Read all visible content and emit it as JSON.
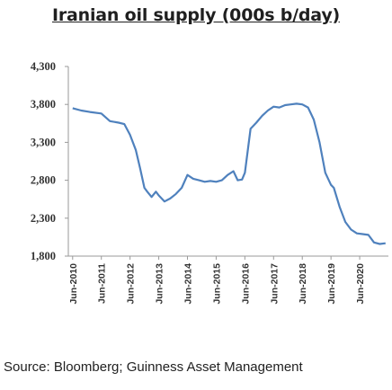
{
  "chart_data": {
    "type": "line",
    "title": "Iranian oil supply (000s b/day)",
    "xlabel": "",
    "ylabel": "",
    "ylim": [
      1800,
      4300
    ],
    "yticks": [
      "4,300",
      "3,800",
      "3,300",
      "2,800",
      "2,300",
      "1,800"
    ],
    "ytick_values": [
      4300,
      3800,
      3300,
      2800,
      2300,
      1800
    ],
    "xticks": [
      "Jun-2010",
      "Jun-2011",
      "Jun-2012",
      "Jun-2013",
      "Jun-2014",
      "Jun-2015",
      "Jun-2016",
      "Jun-2017",
      "Jun-2018",
      "Jun-2019",
      "Jun-2020"
    ],
    "grid": false,
    "legend": "none",
    "line_color": "#4f81bd",
    "series": [
      {
        "x": [
          2010.0,
          2010.3,
          2010.6,
          2011.0,
          2011.3,
          2011.6,
          2011.8,
          2012.0,
          2012.2,
          2012.35,
          2012.5,
          2012.6,
          2012.75,
          2012.9,
          2013.0,
          2013.2,
          2013.4,
          2013.6,
          2013.8,
          2014.0,
          2014.2,
          2014.4,
          2014.6,
          2014.8,
          2015.0,
          2015.2,
          2015.4,
          2015.6,
          2015.75,
          2015.9,
          2016.0,
          2016.2,
          2016.4,
          2016.6,
          2016.8,
          2017.0,
          2017.2,
          2017.4,
          2017.6,
          2017.8,
          2018.0,
          2018.2,
          2018.4,
          2018.6,
          2018.8,
          2019.0,
          2019.1,
          2019.3,
          2019.5,
          2019.7,
          2019.9,
          2020.1,
          2020.3,
          2020.5,
          2020.7,
          2020.9
        ],
        "values": [
          3750,
          3720,
          3700,
          3680,
          3580,
          3560,
          3540,
          3400,
          3200,
          2960,
          2700,
          2650,
          2580,
          2650,
          2600,
          2520,
          2560,
          2620,
          2700,
          2870,
          2820,
          2800,
          2780,
          2790,
          2780,
          2800,
          2870,
          2920,
          2800,
          2810,
          2900,
          3480,
          3560,
          3650,
          3720,
          3770,
          3760,
          3790,
          3800,
          3810,
          3800,
          3760,
          3600,
          3300,
          2900,
          2740,
          2700,
          2450,
          2250,
          2150,
          2100,
          2090,
          2080,
          1980,
          1960,
          1970
        ]
      }
    ]
  },
  "source": "Source: Bloomberg; Guinness Asset Management"
}
